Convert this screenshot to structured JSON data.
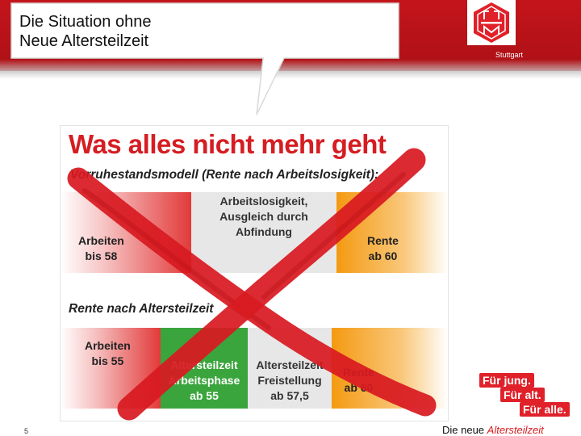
{
  "slide": {
    "title": "Die Situation ohne\nNeue Altersteilzeit",
    "region": "Stuttgart",
    "page_number": "5",
    "footer_plain": "Die neue ",
    "footer_highlight": "Altersteilzeit"
  },
  "infographic": {
    "title": "Was alles nicht mehr geht",
    "section1": {
      "label": "Vorruhestandsmodell (Rente nach Arbeitslosigkeit):",
      "cells": [
        "Arbeiten\nbis 58",
        "Arbeitslosigkeit,\nAusgleich durch\nAbfindung",
        "Rente\nab 60"
      ]
    },
    "section2": {
      "label": "Rente nach Altersteilzeit",
      "cells": [
        "Arbeiten\nbis 55",
        "Altersteilzeit\nArbeitsphase\nab 55",
        "Altersteilzeit\nFreistellung\nab 57,5",
        "Rente\nab 60"
      ]
    }
  },
  "slogan": [
    "Für jung.",
    "Für alt.",
    "Für alle."
  ],
  "colors": {
    "brand_red": "#d51d22",
    "header_red": "#c4141b",
    "green": "#3aa53c",
    "orange": "#f49a12"
  }
}
